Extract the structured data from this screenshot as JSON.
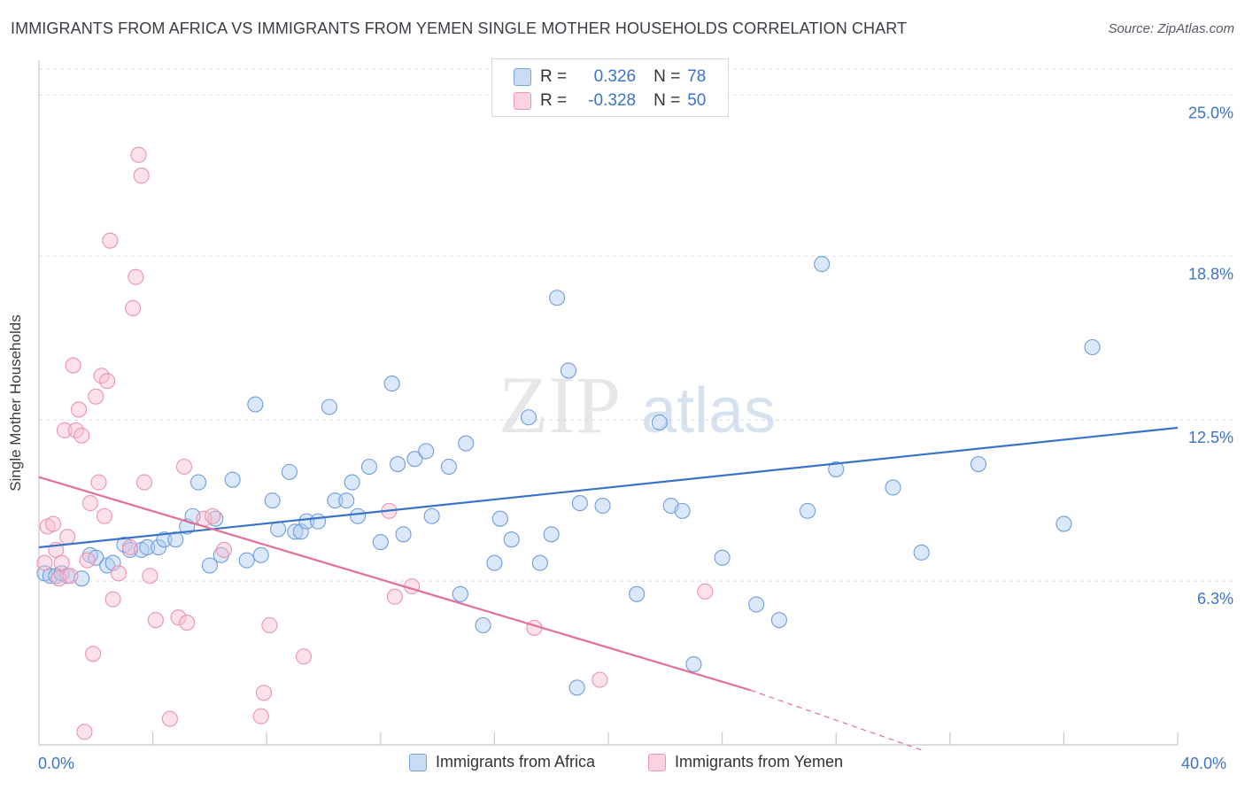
{
  "title": "IMMIGRANTS FROM AFRICA VS IMMIGRANTS FROM YEMEN SINGLE MOTHER HOUSEHOLDS CORRELATION CHART",
  "source": "Source: ZipAtlas.com",
  "watermark": {
    "part1": "ZIP",
    "part2": "atlas"
  },
  "legend": {
    "rows": [
      {
        "r_label": "R =",
        "r_value": "0.326",
        "n_label": "N =",
        "n_value": "78",
        "color": "#aecbf1"
      },
      {
        "r_label": "R =",
        "r_value": "-0.328",
        "n_label": "N =",
        "n_value": "50",
        "color": "#f7bfd1"
      }
    ]
  },
  "bottom_legend": [
    {
      "label": "Immigrants from Africa",
      "color": "#aecbf1"
    },
    {
      "label": "Immigrants from Yemen",
      "color": "#f7bfd1"
    }
  ],
  "colors": {
    "africa": "#3a74c9",
    "yemen": "#e46e99",
    "axis_text": "#3a74c9"
  },
  "chart_data": {
    "type": "scatter",
    "ylabel": "Single Mother Households",
    "xlim": [
      0.0,
      40.0
    ],
    "ylim": [
      0.0,
      26.0
    ],
    "x_tick_labels": [
      "0.0%",
      "40.0%"
    ],
    "y_ticks": [
      6.3,
      12.5,
      18.8,
      25.0
    ],
    "y_tick_labels": [
      "6.3%",
      "12.5%",
      "18.8%",
      "25.0%"
    ],
    "grid": true,
    "series": [
      {
        "name": "Immigrants from Africa",
        "color": "#3a74c9",
        "points": [
          [
            0.2,
            6.6
          ],
          [
            0.4,
            6.5
          ],
          [
            0.6,
            6.5
          ],
          [
            0.8,
            6.6
          ],
          [
            1.0,
            6.5
          ],
          [
            1.5,
            6.4
          ],
          [
            1.8,
            7.3
          ],
          [
            2.0,
            7.2
          ],
          [
            2.4,
            6.9
          ],
          [
            2.6,
            7.0
          ],
          [
            3.0,
            7.7
          ],
          [
            3.2,
            7.5
          ],
          [
            3.6,
            7.5
          ],
          [
            3.8,
            7.6
          ],
          [
            4.2,
            7.6
          ],
          [
            4.4,
            7.9
          ],
          [
            4.8,
            7.9
          ],
          [
            5.2,
            8.4
          ],
          [
            5.4,
            8.8
          ],
          [
            5.6,
            10.1
          ],
          [
            6.0,
            6.9
          ],
          [
            6.2,
            8.7
          ],
          [
            6.4,
            7.3
          ],
          [
            6.8,
            10.2
          ],
          [
            7.3,
            7.1
          ],
          [
            7.6,
            13.1
          ],
          [
            7.8,
            7.3
          ],
          [
            8.2,
            9.4
          ],
          [
            8.4,
            8.3
          ],
          [
            8.8,
            10.5
          ],
          [
            9.0,
            8.2
          ],
          [
            9.2,
            8.2
          ],
          [
            9.4,
            8.6
          ],
          [
            9.8,
            8.6
          ],
          [
            10.2,
            13.0
          ],
          [
            10.4,
            9.4
          ],
          [
            10.8,
            9.4
          ],
          [
            11.0,
            10.1
          ],
          [
            11.2,
            8.8
          ],
          [
            11.6,
            10.7
          ],
          [
            12.0,
            7.8
          ],
          [
            12.4,
            13.9
          ],
          [
            12.6,
            10.8
          ],
          [
            12.8,
            8.1
          ],
          [
            13.2,
            11.0
          ],
          [
            13.6,
            11.3
          ],
          [
            13.8,
            8.8
          ],
          [
            14.4,
            10.7
          ],
          [
            14.8,
            5.8
          ],
          [
            15.0,
            11.6
          ],
          [
            15.6,
            4.6
          ],
          [
            16.0,
            7.0
          ],
          [
            16.2,
            8.7
          ],
          [
            16.6,
            7.9
          ],
          [
            17.2,
            12.6
          ],
          [
            17.6,
            7.0
          ],
          [
            18.0,
            8.1
          ],
          [
            18.2,
            17.2
          ],
          [
            18.6,
            14.4
          ],
          [
            18.9,
            2.2
          ],
          [
            19.0,
            9.3
          ],
          [
            19.8,
            9.2
          ],
          [
            21.0,
            5.8
          ],
          [
            21.8,
            12.4
          ],
          [
            22.2,
            9.2
          ],
          [
            22.6,
            9.0
          ],
          [
            23.0,
            3.1
          ],
          [
            24.0,
            7.2
          ],
          [
            25.2,
            5.4
          ],
          [
            26.0,
            4.8
          ],
          [
            27.0,
            9.0
          ],
          [
            27.5,
            18.5
          ],
          [
            28.0,
            10.6
          ],
          [
            30.0,
            9.9
          ],
          [
            31.0,
            7.4
          ],
          [
            33.0,
            10.8
          ],
          [
            36.0,
            8.5
          ],
          [
            37.0,
            15.3
          ]
        ]
      },
      {
        "name": "Immigrants from Yemen",
        "color": "#e46e99",
        "points": [
          [
            0.2,
            7.0
          ],
          [
            0.3,
            8.4
          ],
          [
            0.5,
            8.5
          ],
          [
            0.6,
            7.5
          ],
          [
            0.7,
            6.4
          ],
          [
            0.8,
            7.0
          ],
          [
            0.9,
            12.1
          ],
          [
            1.0,
            8.0
          ],
          [
            1.1,
            6.5
          ],
          [
            1.2,
            14.6
          ],
          [
            1.3,
            12.1
          ],
          [
            1.4,
            12.9
          ],
          [
            1.5,
            11.9
          ],
          [
            1.6,
            0.5
          ],
          [
            1.7,
            7.1
          ],
          [
            1.8,
            9.3
          ],
          [
            1.9,
            3.5
          ],
          [
            2.0,
            13.4
          ],
          [
            2.1,
            10.1
          ],
          [
            2.2,
            14.2
          ],
          [
            2.3,
            8.8
          ],
          [
            2.4,
            14.0
          ],
          [
            2.5,
            19.4
          ],
          [
            2.6,
            5.6
          ],
          [
            2.8,
            6.6
          ],
          [
            3.2,
            7.6
          ],
          [
            3.3,
            16.8
          ],
          [
            3.4,
            18.0
          ],
          [
            3.5,
            22.7
          ],
          [
            3.6,
            21.9
          ],
          [
            3.7,
            10.1
          ],
          [
            3.9,
            6.5
          ],
          [
            4.1,
            4.8
          ],
          [
            4.6,
            1.0
          ],
          [
            4.9,
            4.9
          ],
          [
            5.1,
            10.7
          ],
          [
            5.2,
            4.7
          ],
          [
            5.8,
            8.7
          ],
          [
            6.1,
            8.8
          ],
          [
            6.5,
            7.5
          ],
          [
            7.8,
            1.1
          ],
          [
            7.9,
            2.0
          ],
          [
            8.1,
            4.6
          ],
          [
            9.3,
            3.4
          ],
          [
            12.3,
            9.0
          ],
          [
            12.5,
            5.7
          ],
          [
            13.1,
            6.1
          ],
          [
            17.4,
            4.5
          ],
          [
            19.7,
            2.5
          ],
          [
            23.4,
            5.9
          ]
        ]
      }
    ],
    "trendlines": [
      {
        "series": "Immigrants from Africa",
        "x": [
          0.0,
          40.0
        ],
        "y": [
          7.6,
          12.2
        ],
        "style": "solid"
      },
      {
        "series": "Immigrants from Yemen",
        "x": [
          0.0,
          25.0
        ],
        "y": [
          10.3,
          2.1
        ],
        "style": "solid"
      },
      {
        "series": "Immigrants from Yemen",
        "x": [
          25.0,
          31.0
        ],
        "y": [
          2.1,
          -0.2
        ],
        "style": "dashed"
      }
    ]
  }
}
